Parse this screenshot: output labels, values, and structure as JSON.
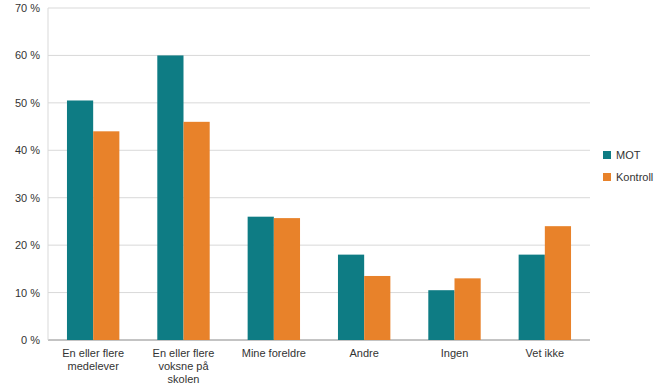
{
  "chart_data": {
    "type": "bar",
    "categories": [
      "En eller flere medelever",
      "En eller flere voksne på skolen",
      "Mine foreldre",
      "Andre",
      "Ingen",
      "Vet ikke"
    ],
    "series": [
      {
        "name": "MOT",
        "color": "#0e7c84",
        "values": [
          50.5,
          60,
          26,
          18,
          10.5,
          18
        ]
      },
      {
        "name": "Kontroll",
        "color": "#e8822a",
        "values": [
          44,
          46,
          25.7,
          13.5,
          13,
          24
        ]
      }
    ],
    "ylim": [
      0,
      70
    ],
    "yticks": [
      {
        "value": 0,
        "label": "0 %"
      },
      {
        "value": 10,
        "label": "10 %"
      },
      {
        "value": 20,
        "label": "20 %"
      },
      {
        "value": 30,
        "label": "30 %"
      },
      {
        "value": 40,
        "label": "40 %"
      },
      {
        "value": 50,
        "label": "50 %"
      },
      {
        "value": 60,
        "label": "60 %"
      },
      {
        "value": 70,
        "label": "70 %"
      }
    ],
    "grid": true,
    "legend": "right"
  }
}
